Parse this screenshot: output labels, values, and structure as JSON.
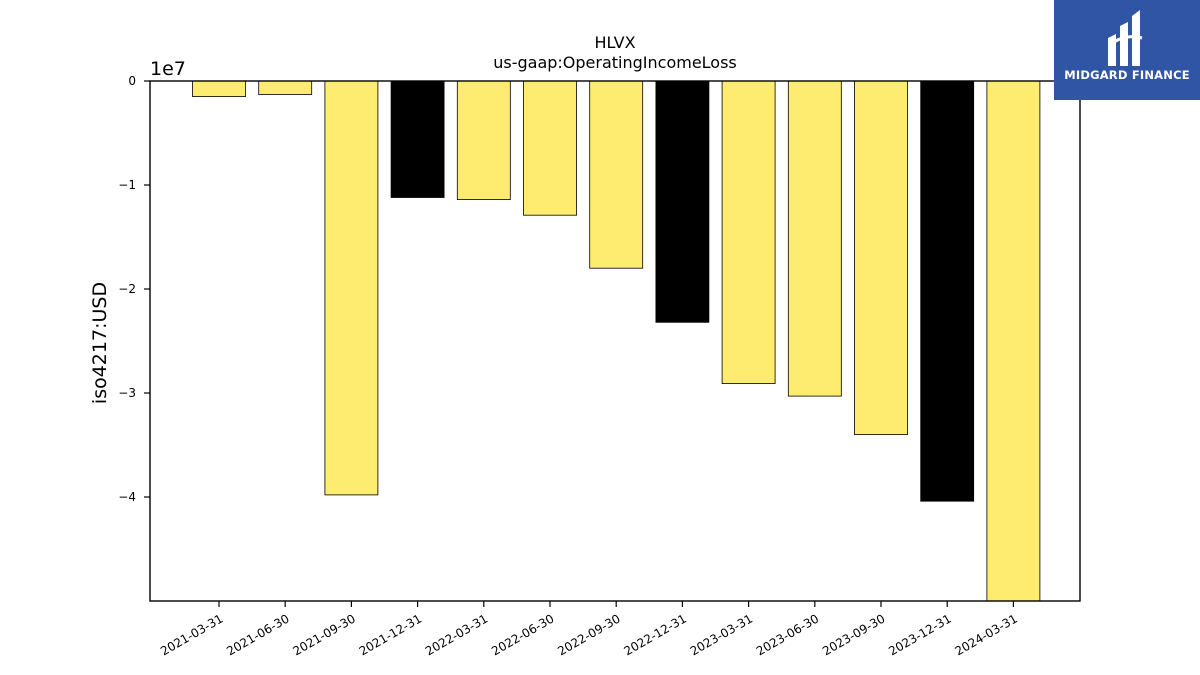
{
  "chart_data": {
    "type": "bar",
    "title": "HLVX",
    "subtitle": "us-gaap:OperatingIncomeLoss",
    "xlabel": "",
    "ylabel": "iso4217:USD",
    "scale_label": "1e7",
    "categories": [
      "2021-03-31",
      "2021-06-30",
      "2021-09-30",
      "2021-12-31",
      "2022-03-31",
      "2022-06-30",
      "2022-09-30",
      "2022-12-31",
      "2023-03-31",
      "2023-06-30",
      "2023-09-30",
      "2023-12-31",
      "2024-03-31"
    ],
    "values": [
      -1500000,
      -1300000,
      -39800000,
      -11200000,
      -11400000,
      -12900000,
      -18000000,
      -23200000,
      -29100000,
      -30300000,
      -34000000,
      -40400000,
      -51500000
    ],
    "bar_colors": [
      "#fdec6f",
      "#fdec6f",
      "#fdec6f",
      "#000000",
      "#fdec6f",
      "#fdec6f",
      "#fdec6f",
      "#000000",
      "#fdec6f",
      "#fdec6f",
      "#fdec6f",
      "#000000",
      "#fdec6f"
    ],
    "ylim": [
      -50000000,
      0
    ],
    "yticks": [
      0,
      -10000000,
      -20000000,
      -30000000,
      -40000000
    ],
    "ytick_labels": [
      "0",
      "−1",
      "−2",
      "−3",
      "−4"
    ],
    "grid": false
  },
  "brand": {
    "name": "MIDGARD FINANCE",
    "color": "#2f55a4"
  }
}
